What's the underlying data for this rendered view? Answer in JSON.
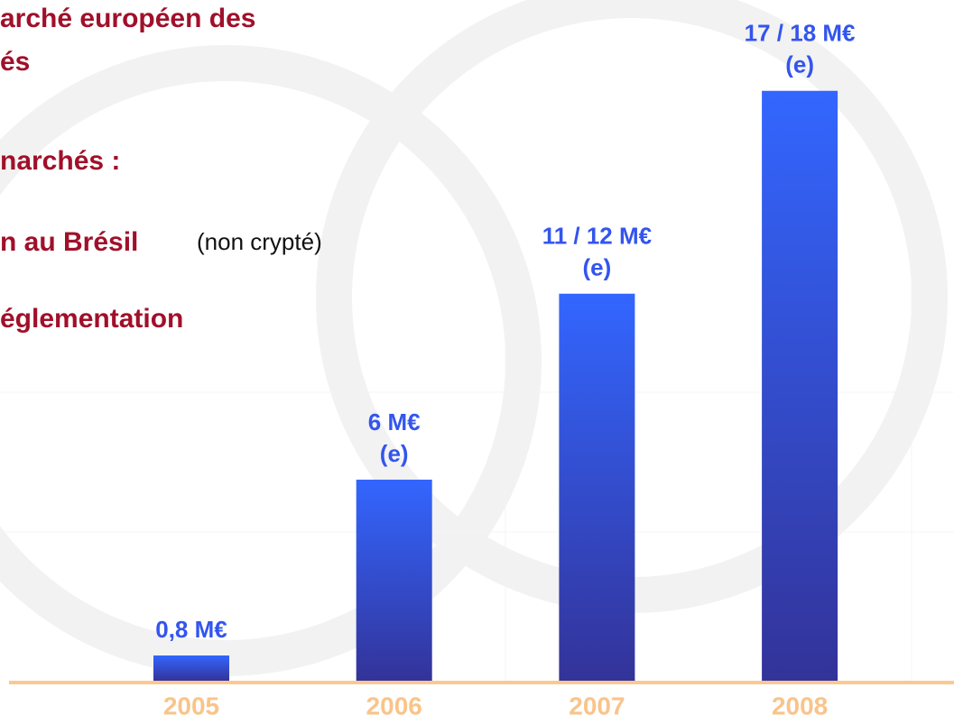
{
  "chart_data": {
    "type": "bar",
    "annotations": [
      "arché européen des",
      "és",
      "narchés :",
      "n au Brésil",
      "(non crypté)",
      "églementation"
    ],
    "categories": [
      "2005",
      "2006",
      "2007",
      "2008"
    ],
    "values": [
      0.8,
      6,
      11.5,
      17.5
    ],
    "value_labels": [
      [
        "0,8 M€"
      ],
      [
        "6 M€",
        "(e)"
      ],
      [
        "11 / 12 M€",
        "(e)"
      ],
      [
        "17 / 18 M€",
        "(e)"
      ]
    ],
    "colors": [
      "#3366ff",
      "#333399"
    ],
    "axis_color": "#fcc890",
    "category_color": "#f9c48a",
    "label_color": "#3355ee",
    "annotation_color": "#a0102a"
  }
}
